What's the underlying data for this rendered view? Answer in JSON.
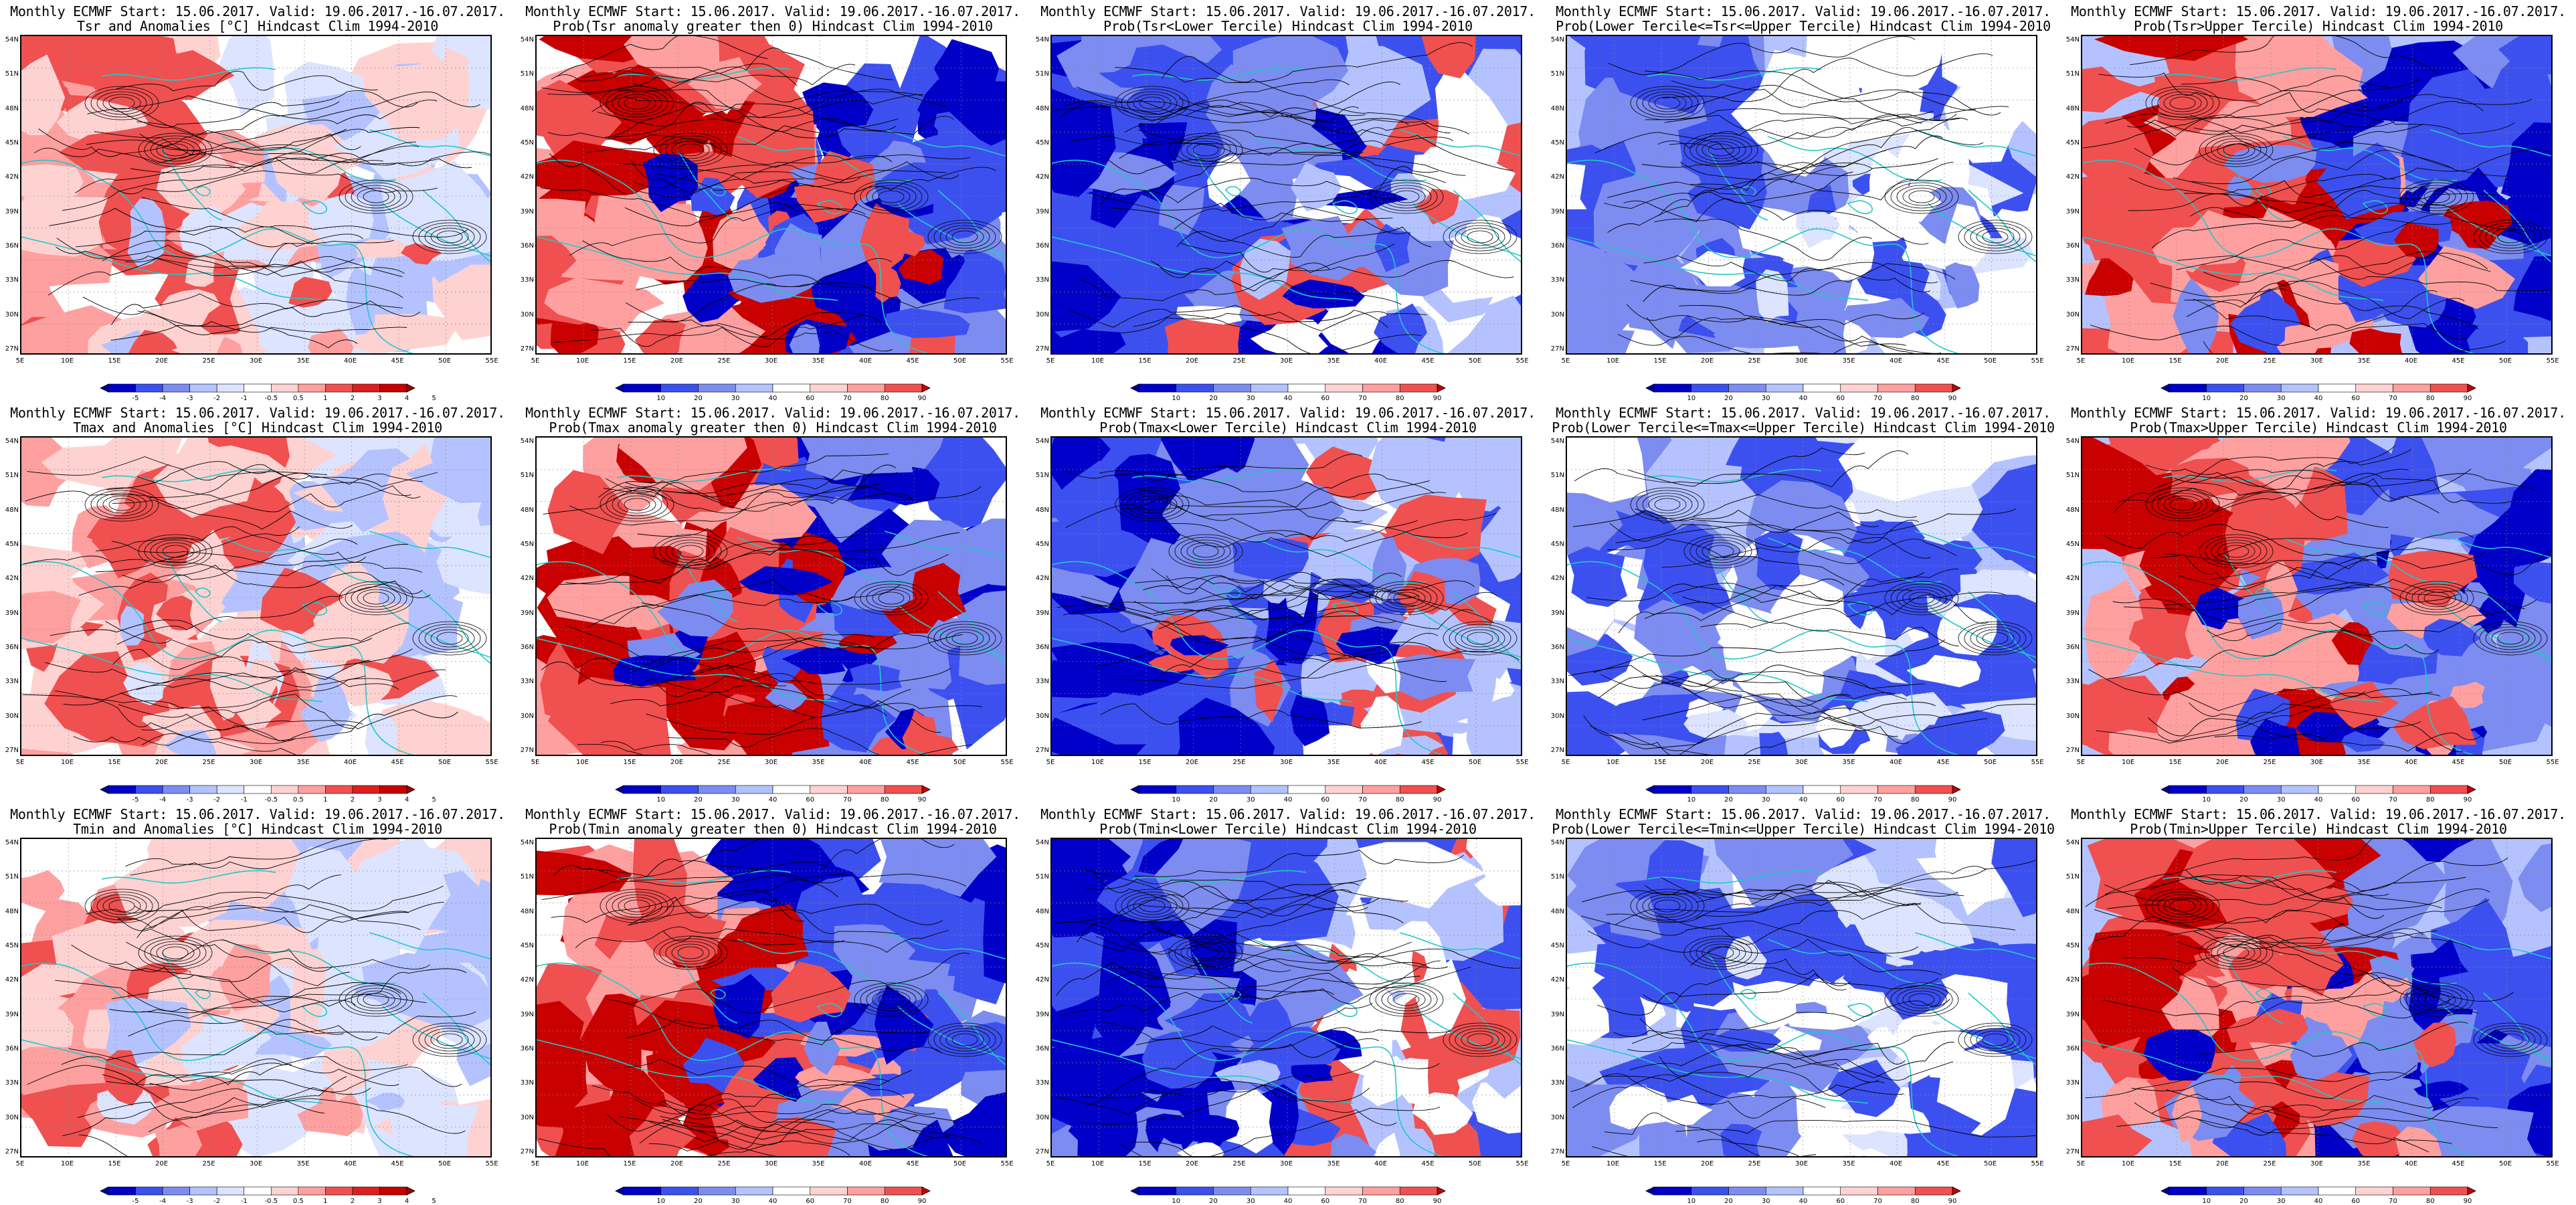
{
  "rows": [
    {
      "anomaly_title": "Tsr and Anomalies [°C] Hindcast Clim 1994-2010",
      "titles": [
        "Tsr and Anomalies [°C] Hindcast Clim 1994-2010",
        "Prob(Tsr anomaly greater then 0) Hindcast Clim 1994-2010",
        "Prob(Tsr<Lower Tercile) Hindcast Clim 1994-2010",
        "Prob(Lower Tercile<=Tsr<=Upper Tercile) Hindcast Clim 1994-2010",
        "Prob(Tsr>Upper Tercile) Hindcast Clim 1994-2010"
      ],
      "anomaly_ticks": [
        "-5",
        "-4",
        "-3",
        "-2",
        "-1",
        "-0.5",
        "0.5",
        "1",
        "2",
        "3",
        "4",
        "5"
      ]
    },
    {
      "titles": [
        "Tmax and Anomalies [°C] Hindcast Clim 1994-2010",
        "Prob(Tmax anomaly greater then 0) Hindcast Clim 1994-2010",
        "Prob(Tmax<Lower Tercile) Hindcast Clim 1994-2010",
        "Prob(Lower Tercile<=Tmax<=Upper Tercile) Hindcast Clim 1994-2010",
        "Prob(Tmax>Upper Tercile) Hindcast Clim 1994-2010"
      ],
      "anomaly_ticks": [
        "-5",
        "-4",
        "-3",
        "-2",
        "-1",
        "-0.5",
        "0.5",
        "1",
        "2",
        "3",
        "4",
        "5"
      ]
    },
    {
      "titles": [
        "Tmin and Anomalies [°C] Hindcast Clim 1994-2010",
        "Prob(Tmin anomaly greater then 0) Hindcast Clim 1994-2010",
        "Prob(Tmin<Lower Tercile) Hindcast Clim 1994-2010",
        "Prob(Lower Tercile<=Tmin<=Upper Tercile) Hindcast Clim 1994-2010",
        "Prob(Tmin>Upper Tercile) Hindcast Clim 1994-2010"
      ],
      "anomaly_ticks": [
        "-5",
        "-4",
        "-3",
        "-2",
        "-1",
        "-0.5",
        "0.5",
        "1",
        "2",
        "3",
        "4",
        "5"
      ]
    }
  ],
  "header_line": "Monthly ECMWF Start: 15.06.2017. Valid: 19.06.2017.-16.07.2017.",
  "prob_ticks": [
    "10",
    "20",
    "30",
    "40",
    "60",
    "70",
    "80",
    "90"
  ],
  "lat_labels": [
    "54N",
    "51N",
    "48N",
    "45N",
    "42N",
    "39N",
    "36N",
    "33N",
    "30N",
    "27N"
  ],
  "lon_labels": [
    "5E",
    "10E",
    "15E",
    "20E",
    "25E",
    "30E",
    "35E",
    "40E",
    "45E",
    "50E",
    "55E"
  ],
  "colors": {
    "dark_blue": "#0000c8",
    "blue": "#3c50f0",
    "mid_blue": "#7d8cf0",
    "light_blue": "#b4c3ff",
    "pale_blue": "#dce4ff",
    "white": "#ffffff",
    "pale_red": "#ffd2d2",
    "light_red": "#ffa0a0",
    "red": "#f05050",
    "dark_red": "#c80000",
    "coast": "#22c8c8",
    "contour": "#000000"
  },
  "panel_styles": [
    "anomaly",
    "prob_red",
    "prob_blue",
    "prob_mixed",
    "prob_redwest"
  ]
}
